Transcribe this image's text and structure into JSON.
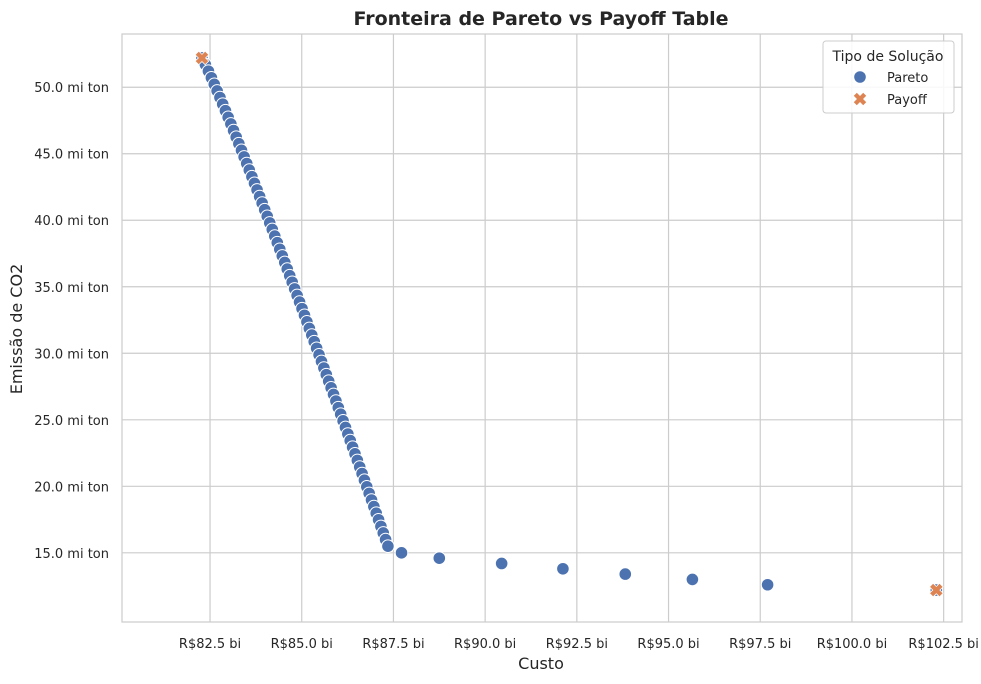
{
  "chart_data": {
    "type": "scatter",
    "title": "Fronteira de Pareto vs Payoff Table",
    "xlabel": "Custo",
    "ylabel": "Emissão de CO2",
    "xlim": [
      80.1,
      103.0
    ],
    "ylim": [
      9.8,
      54.0
    ],
    "x_ticks": [
      82.5,
      85.0,
      87.5,
      90.0,
      92.5,
      95.0,
      97.5,
      100.0,
      102.5
    ],
    "x_tick_labels": [
      "R$82.5 bi",
      "R$85.0 bi",
      "R$87.5 bi",
      "R$90.0 bi",
      "R$92.5 bi",
      "R$95.0 bi",
      "R$97.5 bi",
      "R$100.0 bi",
      "R$102.5 bi"
    ],
    "y_ticks": [
      15,
      20,
      25,
      30,
      35,
      40,
      45,
      50
    ],
    "y_tick_labels": [
      "15.0 mi ton",
      "20.0 mi ton",
      "25.0 mi ton",
      "30.0 mi ton",
      "35.0 mi ton",
      "40.0 mi ton",
      "45.0 mi ton",
      "50.0 mi ton"
    ],
    "grid": true,
    "legend": {
      "title": "Tipo de Solução",
      "placement": "top-right",
      "entries": [
        {
          "label": "Pareto",
          "marker": "circle",
          "color": "#4c72b0"
        },
        {
          "label": "Payoff",
          "marker": "x",
          "color": "#dd8452"
        }
      ]
    },
    "series": [
      {
        "name": "Pareto",
        "marker": "circle",
        "color": "#4c72b0",
        "dense_segment": {
          "x_start": 82.28,
          "y_start": 52.2,
          "x_end": 87.35,
          "y_end": 15.5,
          "count": 75
        },
        "points": [
          {
            "x": 87.72,
            "y": 15.0
          },
          {
            "x": 88.75,
            "y": 14.6
          },
          {
            "x": 90.45,
            "y": 14.2
          },
          {
            "x": 92.12,
            "y": 13.8
          },
          {
            "x": 93.82,
            "y": 13.4
          },
          {
            "x": 95.65,
            "y": 13.0
          },
          {
            "x": 97.7,
            "y": 12.6
          },
          {
            "x": 102.3,
            "y": 12.2
          }
        ]
      },
      {
        "name": "Payoff",
        "marker": "x",
        "color": "#dd8452",
        "points": [
          {
            "x": 82.28,
            "y": 52.2
          },
          {
            "x": 102.3,
            "y": 12.2
          }
        ]
      }
    ]
  }
}
